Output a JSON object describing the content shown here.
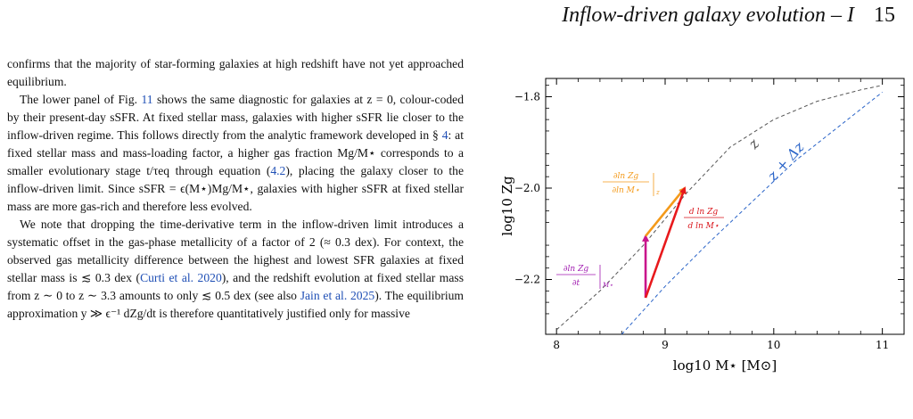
{
  "header": {
    "title": "Inflow-driven galaxy evolution – I",
    "page_number": "15"
  },
  "text": {
    "p1": "confirms that the majority of star-forming galaxies at high redshift have not yet approached equilibrium.",
    "p2_a": "The lower panel of Fig. ",
    "p2_fig": "11",
    "p2_b": " shows the same diagnostic for galaxies at z = 0, colour-coded by their present-day sSFR. At fixed stellar mass, galaxies with higher sSFR lie closer to the inflow-driven regime. This follows directly from the analytic framework developed in § ",
    "p2_sec": "4",
    "p2_c": ": at fixed stellar mass and mass-loading factor, a higher gas fraction Mg/M⋆ corresponds to a smaller evolutionary stage t/τeq through equation (",
    "p2_eq": "4.2",
    "p2_d": "), placing the galaxy closer to the inflow-driven limit. Since sSFR = ϵ(M⋆)Mg/M⋆, galaxies with higher sSFR at fixed stellar mass are more gas-rich and therefore less evolved.",
    "p3_a": "We note that dropping the time-derivative term in the inflow-driven limit introduces a systematic offset in the gas-phase metallicity of a factor of 2 (≈ 0.3 dex). For context, the observed gas metallicity difference between the highest and lowest SFR galaxies at fixed stellar mass is ≲ 0.3 dex (",
    "p3_ref1": "Curti et al. 2020",
    "p3_b": "), and the redshift evolution at fixed stellar mass from z ∼ 0 to z ∼ 3.3 amounts to only ≲ 0.5 dex (see also ",
    "p3_ref2": "Jain et al. 2025",
    "p3_c": "). The equilibrium approximation y ≫ ϵ⁻¹ dZg/dt is therefore quantitatively justified only for massive"
  },
  "chart_data": {
    "type": "line",
    "xlabel": "log10 M⋆ [M⊙]",
    "ylabel": "log10 Zg",
    "xlim": [
      7.9,
      11.2
    ],
    "ylim": [
      -2.32,
      -1.76
    ],
    "xticks": [
      8,
      9,
      10,
      11
    ],
    "yticks": [
      -2.2,
      -2.0,
      -1.8
    ],
    "xtick_labels": [
      "8",
      "9",
      "10",
      "11"
    ],
    "ytick_labels": [
      "−2.2",
      "−2.0",
      "−1.8"
    ],
    "grid": false,
    "series": [
      {
        "name": "z",
        "color": "#555555",
        "style": "dashed",
        "x": [
          8.0,
          8.4,
          8.8,
          9.2,
          9.6,
          10.0,
          10.4,
          10.8,
          11.0
        ],
        "y": [
          -2.31,
          -2.225,
          -2.125,
          -2.01,
          -1.91,
          -1.85,
          -1.81,
          -1.785,
          -1.775
        ]
      },
      {
        "name": "z + Δz",
        "color": "#2a64c8",
        "style": "dashed",
        "x": [
          8.6,
          9.0,
          9.4,
          9.8,
          10.2,
          10.6,
          11.0
        ],
        "y": [
          -2.32,
          -2.215,
          -2.12,
          -2.03,
          -1.94,
          -1.865,
          -1.79
        ]
      }
    ],
    "arrows": [
      {
        "color": "#c9158c",
        "from": [
          8.82,
          -2.24
        ],
        "to": [
          8.82,
          -2.105
        ]
      },
      {
        "color": "#f49a1a",
        "from": [
          8.82,
          -2.105
        ],
        "to": [
          9.18,
          -2.0
        ]
      },
      {
        "color": "#e8191c",
        "from": [
          8.82,
          -2.24
        ],
        "to": [
          9.18,
          -2.0
        ]
      }
    ],
    "labels": {
      "curve1": "z",
      "curve2": "z + Δz",
      "purple_num": "∂ln Zg",
      "purple_den": "∂t",
      "purple_sub": "M⋆",
      "orange_num": "∂ln Zg",
      "orange_den": "∂ln M⋆",
      "orange_sub": "z",
      "red_num": "d ln Zg",
      "red_den": "d ln M⋆"
    },
    "colors": {
      "purple": "#a01ab0",
      "orange": "#f49a1a",
      "red": "#d9141a",
      "blue": "#2a64c8",
      "gray": "#555555"
    }
  }
}
